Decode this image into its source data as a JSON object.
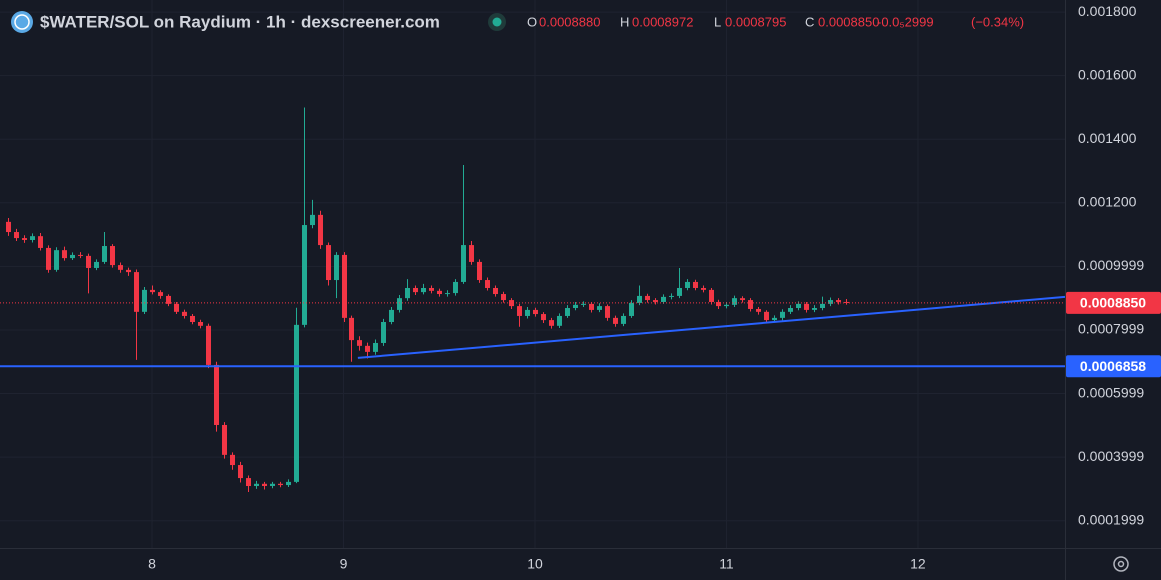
{
  "chart_data": {
    "type": "candlestick",
    "title": "$WATER/SOL on Raydium · 1h · dexscreener.com",
    "ohlc_legend": [
      {
        "key": "O",
        "value": "0.0008880"
      },
      {
        "key": "H",
        "value": "0.0008972"
      },
      {
        "key": "L",
        "value": "0.0008795"
      },
      {
        "key": "C",
        "value": "0.0008850"
      }
    ],
    "change": "-0.0₅2999",
    "change_pct": "(−0.34%)",
    "up_color": "#22ab94",
    "down_color": "#f23645",
    "grid": true,
    "xlim": [
      7.206,
      12.768
    ],
    "xticks": [
      8,
      9,
      10,
      11,
      12
    ],
    "ylim": [
      0.000114,
      0.001838
    ],
    "yticks": [
      {
        "value": 0.0018,
        "label": "0.001800"
      },
      {
        "value": 0.0016,
        "label": "0.001600"
      },
      {
        "value": 0.0014,
        "label": "0.001400"
      },
      {
        "value": 0.0012,
        "label": "0.001200"
      },
      0.0009999,
      0.0007999,
      0.0005999,
      0.0003999,
      0.0001999
    ],
    "x": [
      7.25,
      7.2917,
      7.3333,
      7.375,
      7.4167,
      7.4583,
      7.5,
      7.5417,
      7.5833,
      7.625,
      7.6667,
      7.7083,
      7.75,
      7.7917,
      7.8333,
      7.875,
      7.9167,
      7.9583,
      8,
      8.0417,
      8.0833,
      8.125,
      8.1667,
      8.2083,
      8.25,
      8.2917,
      8.3333,
      8.375,
      8.4167,
      8.4583,
      8.5,
      8.5417,
      8.5833,
      8.625,
      8.6667,
      8.7083,
      8.75,
      8.7917,
      8.8333,
      8.875,
      8.9167,
      8.9583,
      9,
      9.0417,
      9.0833,
      9.125,
      9.1667,
      9.2083,
      9.25,
      9.2917,
      9.3333,
      9.375,
      9.4167,
      9.4583,
      9.5,
      9.5417,
      9.5833,
      9.625,
      9.6667,
      9.7083,
      9.75,
      9.7917,
      9.8333,
      9.875,
      9.9167,
      9.9583,
      10,
      10.0417,
      10.0833,
      10.125,
      10.1667,
      10.2083,
      10.25,
      10.2917,
      10.3333,
      10.375,
      10.4167,
      10.4583,
      10.5,
      10.5417,
      10.5833,
      10.625,
      10.6667,
      10.7083,
      10.75,
      10.7917,
      10.8333,
      10.875,
      10.9167,
      10.9583,
      11,
      11.0417,
      11.0833,
      11.125,
      11.1667,
      11.2083,
      11.25,
      11.2917,
      11.3333,
      11.375,
      11.4167,
      11.4583,
      11.5,
      11.5417,
      11.5833,
      11.625
    ],
    "open": [
      0.00114,
      0.001108,
      0.001089,
      0.001083,
      0.001095,
      0.001058,
      0.000989,
      0.001051,
      0.001026,
      0.001036,
      0.001033,
      0.000995,
      0.001014,
      0.001064,
      0.001004,
      0.000989,
      0.000982,
      0.000857,
      0.000926,
      0.000919,
      0.000907,
      0.000882,
      0.000857,
      0.000844,
      0.000825,
      0.000813,
      0.00069,
      0.000501,
      0.000407,
      0.000375,
      0.000334,
      0.000309,
      0.000316,
      0.000309,
      0.000316,
      0.000312,
      0.000322,
      0.000816,
      0.00113,
      0.001162,
      0.001067,
      0.000957,
      0.001036,
      0.000838,
      0.000768,
      0.00075,
      0.000731,
      0.000759,
      0.000825,
      0.000863,
      0.0009,
      0.000932,
      0.000919,
      0.000932,
      0.000923,
      0.000913,
      0.000916,
      0.000951,
      0.001067,
      0.001014,
      0.000957,
      0.000932,
      0.000913,
      0.000894,
      0.000875,
      0.000844,
      0.000863,
      0.00085,
      0.000831,
      0.000813,
      0.000844,
      0.000869,
      0.000879,
      0.000882,
      0.000863,
      0.000875,
      0.000838,
      0.000819,
      0.000844,
      0.000885,
      0.000907,
      0.000894,
      0.000888,
      0.000904,
      0.000907,
      0.000932,
      0.000951,
      0.000932,
      0.000926,
      0.000888,
      0.000875,
      0.000879,
      0.0009,
      0.000894,
      0.000866,
      0.000857,
      0.000831,
      0.000838,
      0.000857,
      0.000869,
      0.000882,
      0.000863,
      0.000869,
      0.000882,
      0.000894,
      0.000888
    ],
    "high": [
      0.001152,
      0.001118,
      0.001098,
      0.001104,
      0.001105,
      0.001066,
      0.00106,
      0.001062,
      0.001044,
      0.001045,
      0.00104,
      0.001022,
      0.001108,
      0.00107,
      0.001012,
      0.000996,
      0.00099,
      0.000935,
      0.00094,
      0.000925,
      0.000912,
      0.000888,
      0.000864,
      0.00085,
      0.000832,
      0.00082,
      0.0007,
      0.00051,
      0.000415,
      0.000385,
      0.000342,
      0.000325,
      0.000322,
      0.000322,
      0.000322,
      0.00033,
      0.00087,
      0.0015,
      0.001209,
      0.001175,
      0.001075,
      0.001045,
      0.001045,
      0.000845,
      0.00078,
      0.00076,
      0.00077,
      0.000835,
      0.000872,
      0.00091,
      0.00096,
      0.00094,
      0.000945,
      0.00094,
      0.00093,
      0.000925,
      0.00096,
      0.001319,
      0.00108,
      0.001022,
      0.000965,
      0.00094,
      0.00092,
      0.0009,
      0.000882,
      0.000872,
      0.00087,
      0.000856,
      0.000838,
      0.000852,
      0.000878,
      0.000888,
      0.00089,
      0.000888,
      0.000884,
      0.00088,
      0.000845,
      0.000852,
      0.000894,
      0.00094,
      0.000914,
      0.0009,
      0.000912,
      0.000915,
      0.000995,
      0.00096,
      0.000958,
      0.00094,
      0.000932,
      0.000895,
      0.000888,
      0.000908,
      0.000906,
      0.0009,
      0.000872,
      0.000862,
      0.000846,
      0.000865,
      0.000878,
      0.00089,
      0.000888,
      0.000878,
      0.000905,
      0.000902,
      0.0009,
      0.0008972
    ],
    "low": [
      0.001096,
      0.00108,
      0.001074,
      0.001075,
      0.00105,
      0.00098,
      0.000983,
      0.001018,
      0.00102,
      0.001026,
      0.000915,
      0.000988,
      0.001008,
      0.000996,
      0.00098,
      0.00097,
      0.000706,
      0.00085,
      0.000912,
      0.000898,
      0.000875,
      0.00085,
      0.000836,
      0.000818,
      0.000805,
      0.00068,
      0.00048,
      0.000395,
      0.00036,
      0.00032,
      0.00029,
      0.0003,
      0.000298,
      0.000302,
      0.000305,
      0.000306,
      0.000318,
      0.000808,
      0.00112,
      0.001055,
      0.00094,
      0.0009,
      0.000825,
      0.0007,
      0.000735,
      0.00071,
      0.000722,
      0.00075,
      0.000818,
      0.000855,
      0.000892,
      0.00091,
      0.000912,
      0.000915,
      0.000905,
      0.000905,
      0.000908,
      0.000945,
      0.001005,
      0.000948,
      0.000924,
      0.000905,
      0.000886,
      0.000866,
      0.00081,
      0.000836,
      0.000842,
      0.000822,
      0.000804,
      0.000806,
      0.000838,
      0.000862,
      0.000872,
      0.000855,
      0.000856,
      0.000829,
      0.00081,
      0.000812,
      0.000838,
      0.000878,
      0.000886,
      0.00088,
      0.000882,
      0.000896,
      0.0009,
      0.000925,
      0.000925,
      0.000918,
      0.00088,
      0.000866,
      0.000868,
      0.000872,
      0.000886,
      0.000858,
      0.000848,
      0.000822,
      0.000824,
      0.00083,
      0.00085,
      0.000862,
      0.000855,
      0.000856,
      0.000862,
      0.000875,
      0.00088,
      0.0008795
    ],
    "close": [
      0.001108,
      0.001089,
      0.001083,
      0.001095,
      0.001058,
      0.000989,
      0.001051,
      0.001026,
      0.001036,
      0.001033,
      0.000995,
      0.001014,
      0.001064,
      0.001004,
      0.000989,
      0.000982,
      0.000857,
      0.000926,
      0.000919,
      0.000907,
      0.000882,
      0.000857,
      0.000844,
      0.000825,
      0.000813,
      0.00069,
      0.000501,
      0.000407,
      0.000375,
      0.000334,
      0.000309,
      0.000316,
      0.000309,
      0.000316,
      0.000312,
      0.000322,
      0.000816,
      0.00113,
      0.001162,
      0.001067,
      0.000957,
      0.001036,
      0.000838,
      0.000768,
      0.00075,
      0.000731,
      0.000759,
      0.000825,
      0.000863,
      0.0009,
      0.000932,
      0.000919,
      0.000932,
      0.000923,
      0.000913,
      0.000916,
      0.000951,
      0.001067,
      0.001014,
      0.000957,
      0.000932,
      0.000913,
      0.000894,
      0.000875,
      0.000844,
      0.000863,
      0.00085,
      0.000831,
      0.000813,
      0.000844,
      0.000869,
      0.000879,
      0.000882,
      0.000863,
      0.000875,
      0.000838,
      0.000819,
      0.000844,
      0.000885,
      0.000907,
      0.000894,
      0.000888,
      0.000904,
      0.000907,
      0.000932,
      0.000951,
      0.000932,
      0.000926,
      0.000888,
      0.000875,
      0.000879,
      0.0009,
      0.000894,
      0.000866,
      0.000857,
      0.000831,
      0.000838,
      0.000857,
      0.000869,
      0.000882,
      0.000863,
      0.000869,
      0.000882,
      0.000894,
      0.000888,
      0.000885
    ],
    "price_line": {
      "value": 0.000885,
      "label": "0.0008850",
      "color": "#f23645"
    },
    "horizontal_line": {
      "value": 0.0006858,
      "label": "0.0006858",
      "color": "#2962ff"
    },
    "trendline": {
      "x": [
        9.075,
        12.768
      ],
      "y": [
        0.000712,
        0.000904
      ],
      "color": "#2962ff"
    }
  }
}
